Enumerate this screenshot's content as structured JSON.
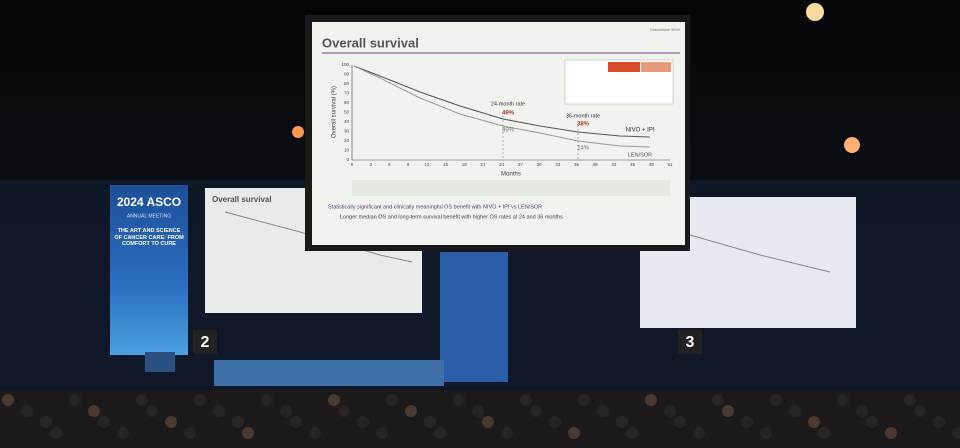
{
  "banner": {
    "brand": "2024 ASCO",
    "meeting": "ANNUAL MEETING",
    "theme": "THE ART AND SCIENCE OF CANCER CARE: FROM COMFORT TO CURE"
  },
  "screens": {
    "left_number": "2",
    "right_number": "3"
  },
  "slide": {
    "title": "Overall survival",
    "study": "CheckMate 9DW",
    "y_axis_label": "Overall survival (%)",
    "x_axis_label": "Months",
    "y_ticks": [
      "0",
      "10",
      "20",
      "30",
      "40",
      "50",
      "60",
      "70",
      "80",
      "90",
      "100"
    ],
    "x_ticks": [
      "0",
      "3",
      "6",
      "9",
      "12",
      "15",
      "18",
      "21",
      "24",
      "27",
      "30",
      "33",
      "36",
      "39",
      "42",
      "45",
      "48",
      "51"
    ],
    "rate_24": "24-month rate",
    "rate_24_nivo": "49%",
    "rate_24_len": "39%",
    "rate_36": "36-month rate",
    "rate_36_nivo": "38%",
    "rate_36_len": "24%",
    "arm_nivo": "NIVO + IPI",
    "arm_len": "LEN/SOR",
    "bullet": "Statistically significant and clinically meaningful OS benefit with NIVO + IPI vs LEN/SOR",
    "sub_bullet": "Longer median OS and long-term survival benefit with higher OS rates at 24 and 36 months"
  }
}
